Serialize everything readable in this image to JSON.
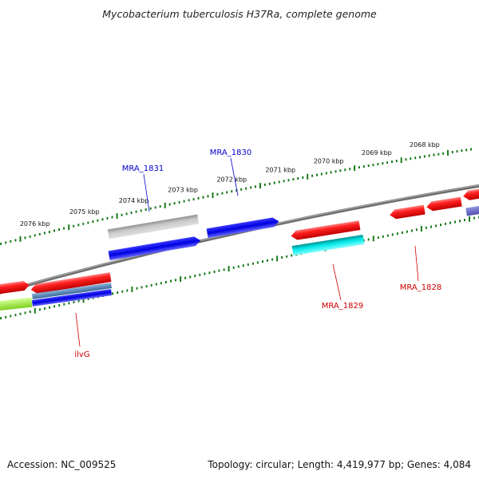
{
  "title": "Mycobacterium tuberculosis H37Ra, complete genome",
  "footer": {
    "accession": "Accession: NC_009525",
    "summary": "Topology: circular; Length: 4,419,977 bp; Genes: 4,084"
  },
  "colors": {
    "backbone": "#7a7a7a",
    "tick": "#1a7a1a",
    "label_forward": "#0000cc",
    "label_reverse": "#cc0000"
  },
  "scale": {
    "unit": "kbp",
    "labels": [
      {
        "kbp": 2068,
        "text": "2068 kbp"
      },
      {
        "kbp": 2069,
        "text": "2069 kbp"
      },
      {
        "kbp": 2070,
        "text": "2070 kbp"
      },
      {
        "kbp": 2071,
        "text": "2071 kbp"
      },
      {
        "kbp": 2072,
        "text": "2072 kbp"
      },
      {
        "kbp": 2073,
        "text": "2073 kbp"
      },
      {
        "kbp": 2074,
        "text": "2074 kbp"
      },
      {
        "kbp": 2075,
        "text": "2075 kbp"
      },
      {
        "kbp": 2076,
        "text": "2076 kbp"
      }
    ]
  },
  "gene_labels": [
    {
      "id": "MRA_1831",
      "text": "MRA_1831",
      "strand": "forward"
    },
    {
      "id": "MRA_1830",
      "text": "MRA_1830",
      "strand": "forward"
    },
    {
      "id": "MRA_1829",
      "text": "MRA_1829",
      "strand": "reverse"
    },
    {
      "id": "MRA_1828",
      "text": "MRA_1828",
      "strand": "reverse"
    },
    {
      "id": "ilvG",
      "text": "ilvG",
      "strand": "reverse"
    }
  ]
}
